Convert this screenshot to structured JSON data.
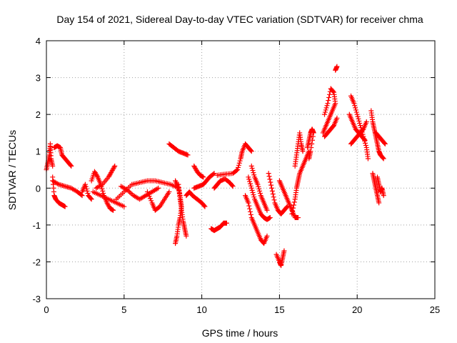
{
  "chart_data": {
    "type": "scatter",
    "title": "Day 154 of 2021, Sidereal Day-to-day VTEC variation (SDTVAR) for receiver chma",
    "xlabel": "GPS time / hours",
    "ylabel": "SDTVAR / TECUs",
    "xlim": [
      0,
      25
    ],
    "ylim": [
      -3,
      4
    ],
    "xticks": [
      "0",
      "5",
      "10",
      "15",
      "20",
      "25"
    ],
    "yticks": [
      "-3",
      "-2",
      "-1",
      "0",
      "1",
      "2",
      "3",
      "4"
    ],
    "grid": true,
    "marker": "plus",
    "color": "#ff0000",
    "trace_segments": [
      [
        [
          0.0,
          0.5
        ],
        [
          0.1,
          0.7
        ],
        [
          0.2,
          0.9
        ],
        [
          0.25,
          1.2
        ],
        [
          0.3,
          0.8
        ],
        [
          0.4,
          0.6
        ]
      ],
      [
        [
          0.4,
          0.3
        ],
        [
          0.5,
          -0.2
        ],
        [
          0.6,
          -0.3
        ],
        [
          0.8,
          -0.4
        ],
        [
          1.0,
          -0.45
        ],
        [
          1.2,
          -0.5
        ]
      ],
      [
        [
          0.5,
          1.1
        ],
        [
          0.7,
          1.15
        ],
        [
          0.9,
          1.1
        ],
        [
          1.0,
          0.9
        ],
        [
          1.2,
          0.8
        ],
        [
          1.4,
          0.7
        ],
        [
          1.6,
          0.6
        ]
      ],
      [
        [
          0.4,
          0.2
        ],
        [
          0.8,
          0.1
        ],
        [
          1.2,
          0.05
        ],
        [
          1.6,
          0.0
        ],
        [
          2.0,
          -0.1
        ],
        [
          2.3,
          -0.2
        ]
      ],
      [
        [
          2.3,
          -0.1
        ],
        [
          2.5,
          0.1
        ],
        [
          2.7,
          -0.2
        ],
        [
          2.9,
          -0.3
        ]
      ],
      [
        [
          2.9,
          0.2
        ],
        [
          3.1,
          0.45
        ],
        [
          3.3,
          0.3
        ],
        [
          3.5,
          0.1
        ],
        [
          3.7,
          -0.2
        ],
        [
          3.9,
          -0.4
        ],
        [
          4.1,
          -0.55
        ],
        [
          4.3,
          -0.6
        ]
      ],
      [
        [
          3.2,
          0.0
        ],
        [
          3.6,
          0.1
        ],
        [
          4.0,
          0.3
        ],
        [
          4.2,
          0.45
        ],
        [
          4.4,
          0.6
        ]
      ],
      [
        [
          3.0,
          -0.1
        ],
        [
          3.5,
          -0.2
        ],
        [
          4.0,
          -0.3
        ],
        [
          4.5,
          -0.4
        ],
        [
          5.0,
          -0.5
        ]
      ],
      [
        [
          4.5,
          -0.3
        ],
        [
          5.0,
          -0.1
        ],
        [
          5.5,
          0.1
        ],
        [
          6.0,
          0.15
        ],
        [
          6.5,
          0.2
        ],
        [
          7.0,
          0.2
        ],
        [
          7.5,
          0.15
        ],
        [
          8.0,
          0.1
        ],
        [
          8.5,
          0.0
        ]
      ],
      [
        [
          4.8,
          0.05
        ],
        [
          5.2,
          -0.05
        ],
        [
          5.6,
          -0.2
        ],
        [
          6.0,
          -0.3
        ],
        [
          6.4,
          -0.2
        ],
        [
          6.8,
          -0.1
        ],
        [
          7.2,
          0.0
        ]
      ],
      [
        [
          6.5,
          -0.1
        ],
        [
          6.8,
          -0.4
        ],
        [
          7.0,
          -0.6
        ],
        [
          7.3,
          -0.5
        ],
        [
          7.6,
          -0.3
        ],
        [
          7.9,
          -0.1
        ]
      ],
      [
        [
          7.9,
          1.2
        ],
        [
          8.2,
          1.1
        ],
        [
          8.5,
          1.0
        ],
        [
          8.8,
          0.95
        ],
        [
          9.1,
          0.9
        ]
      ],
      [
        [
          8.5,
          0.1
        ],
        [
          8.6,
          -0.3
        ],
        [
          8.7,
          -0.6
        ],
        [
          8.8,
          -0.9
        ],
        [
          8.9,
          -1.1
        ],
        [
          9.0,
          -1.3
        ]
      ],
      [
        [
          8.3,
          0.2
        ],
        [
          8.5,
          0.0
        ],
        [
          8.6,
          -0.2
        ],
        [
          8.7,
          -0.5
        ],
        [
          8.6,
          -0.8
        ],
        [
          8.5,
          -1.0
        ],
        [
          8.4,
          -1.3
        ],
        [
          8.3,
          -1.5
        ]
      ],
      [
        [
          9.0,
          -0.2
        ],
        [
          9.2,
          -0.1
        ],
        [
          9.4,
          -0.2
        ],
        [
          9.7,
          -0.3
        ],
        [
          10.0,
          -0.4
        ],
        [
          10.2,
          -0.5
        ]
      ],
      [
        [
          9.5,
          0.6
        ],
        [
          9.7,
          0.45
        ],
        [
          9.9,
          0.35
        ],
        [
          10.1,
          0.3
        ]
      ],
      [
        [
          9.5,
          0.0
        ],
        [
          9.8,
          0.05
        ],
        [
          10.1,
          0.1
        ],
        [
          10.3,
          0.2
        ],
        [
          10.5,
          0.3
        ],
        [
          10.8,
          0.4
        ]
      ],
      [
        [
          10.6,
          -1.1
        ],
        [
          10.8,
          -1.15
        ],
        [
          11.0,
          -1.1
        ],
        [
          11.2,
          -1.05
        ],
        [
          11.4,
          -0.95
        ],
        [
          11.6,
          -0.95
        ]
      ],
      [
        [
          10.8,
          0.0
        ],
        [
          11.0,
          0.1
        ],
        [
          11.2,
          0.2
        ],
        [
          11.5,
          0.25
        ],
        [
          11.8,
          0.15
        ],
        [
          12.0,
          0.05
        ]
      ],
      [
        [
          11.0,
          0.35
        ],
        [
          11.5,
          0.38
        ],
        [
          12.0,
          0.4
        ],
        [
          12.3,
          0.5
        ],
        [
          12.5,
          0.8
        ],
        [
          12.6,
          1.0
        ],
        [
          12.8,
          1.2
        ],
        [
          13.0,
          1.1
        ],
        [
          13.2,
          1.0
        ]
      ],
      [
        [
          12.8,
          -0.2
        ],
        [
          13.0,
          -0.4
        ],
        [
          13.2,
          -0.8
        ],
        [
          13.4,
          -1.0
        ],
        [
          13.6,
          -1.2
        ],
        [
          13.8,
          -1.4
        ],
        [
          14.0,
          -1.5
        ],
        [
          14.2,
          -1.3
        ]
      ],
      [
        [
          13.0,
          0.3
        ],
        [
          13.2,
          0.0
        ],
        [
          13.4,
          -0.3
        ],
        [
          13.6,
          -0.5
        ],
        [
          13.8,
          -0.7
        ],
        [
          14.0,
          -0.8
        ],
        [
          14.2,
          -0.85
        ],
        [
          14.4,
          -0.8
        ]
      ],
      [
        [
          13.2,
          0.6
        ],
        [
          13.4,
          0.3
        ],
        [
          13.6,
          0.1
        ],
        [
          13.8,
          -0.2
        ],
        [
          14.0,
          -0.4
        ],
        [
          14.2,
          -0.6
        ]
      ],
      [
        [
          14.3,
          0.4
        ],
        [
          14.5,
          0.0
        ],
        [
          14.7,
          -0.4
        ],
        [
          14.9,
          -0.6
        ],
        [
          15.1,
          -0.7
        ],
        [
          15.3,
          -0.6
        ],
        [
          15.5,
          -0.5
        ]
      ],
      [
        [
          14.8,
          -1.8
        ],
        [
          15.0,
          -2.0
        ],
        [
          15.1,
          -2.1
        ],
        [
          15.2,
          -1.9
        ],
        [
          15.3,
          -1.7
        ]
      ],
      [
        [
          15.0,
          0.2
        ],
        [
          15.2,
          0.0
        ],
        [
          15.4,
          -0.2
        ],
        [
          15.6,
          -0.4
        ],
        [
          15.8,
          -0.6
        ],
        [
          16.0,
          -0.8
        ],
        [
          16.2,
          -0.8
        ]
      ],
      [
        [
          15.8,
          -0.7
        ],
        [
          16.0,
          -0.3
        ],
        [
          16.1,
          0.0
        ],
        [
          16.2,
          0.2
        ],
        [
          16.3,
          0.4
        ],
        [
          16.5,
          0.6
        ],
        [
          16.7,
          0.8
        ],
        [
          16.9,
          1.0
        ]
      ],
      [
        [
          16.0,
          0.6
        ],
        [
          16.1,
          0.9
        ],
        [
          16.2,
          1.2
        ],
        [
          16.3,
          1.5
        ],
        [
          16.4,
          1.2
        ],
        [
          16.5,
          1.0
        ]
      ],
      [
        [
          16.8,
          1.1
        ],
        [
          16.9,
          1.3
        ],
        [
          17.0,
          1.5
        ],
        [
          17.1,
          1.6
        ],
        [
          17.2,
          1.5
        ],
        [
          17.0,
          1.0
        ],
        [
          16.9,
          0.8
        ]
      ],
      [
        [
          17.8,
          1.5
        ],
        [
          18.0,
          1.7
        ],
        [
          18.2,
          1.9
        ],
        [
          18.4,
          2.1
        ],
        [
          18.6,
          2.3
        ],
        [
          18.5,
          2.6
        ],
        [
          18.3,
          2.7
        ],
        [
          18.1,
          2.3
        ],
        [
          17.9,
          2.0
        ]
      ],
      [
        [
          18.6,
          3.2
        ],
        [
          18.7,
          3.3
        ]
      ],
      [
        [
          17.9,
          1.4
        ],
        [
          18.1,
          1.5
        ],
        [
          18.3,
          1.6
        ],
        [
          18.5,
          1.7
        ],
        [
          18.7,
          1.9
        ]
      ],
      [
        [
          19.6,
          2.5
        ],
        [
          19.8,
          2.3
        ],
        [
          20.0,
          2.0
        ],
        [
          20.2,
          1.7
        ],
        [
          20.4,
          1.4
        ],
        [
          20.6,
          1.1
        ],
        [
          20.7,
          0.8
        ]
      ],
      [
        [
          19.5,
          2.0
        ],
        [
          19.7,
          1.8
        ],
        [
          19.9,
          1.6
        ],
        [
          20.1,
          1.5
        ],
        [
          20.3,
          1.4
        ],
        [
          20.5,
          1.3
        ]
      ],
      [
        [
          19.6,
          1.2
        ],
        [
          19.8,
          1.3
        ],
        [
          20.0,
          1.4
        ],
        [
          20.2,
          1.5
        ],
        [
          20.4,
          1.6
        ],
        [
          20.6,
          1.8
        ]
      ],
      [
        [
          20.9,
          2.1
        ],
        [
          21.0,
          1.8
        ],
        [
          21.1,
          1.6
        ],
        [
          21.2,
          1.4
        ],
        [
          21.3,
          1.2
        ],
        [
          21.4,
          1.0
        ],
        [
          21.5,
          0.9
        ],
        [
          21.7,
          0.8
        ]
      ],
      [
        [
          21.2,
          1.5
        ],
        [
          21.4,
          1.4
        ],
        [
          21.6,
          1.3
        ],
        [
          21.8,
          1.2
        ]
      ],
      [
        [
          21.0,
          0.4
        ],
        [
          21.1,
          0.2
        ],
        [
          21.2,
          0.0
        ],
        [
          21.3,
          -0.2
        ],
        [
          21.4,
          -0.4
        ]
      ],
      [
        [
          21.3,
          0.3
        ],
        [
          21.4,
          0.1
        ],
        [
          21.5,
          -0.1
        ],
        [
          21.6,
          0.0
        ],
        [
          21.7,
          -0.2
        ]
      ]
    ]
  }
}
